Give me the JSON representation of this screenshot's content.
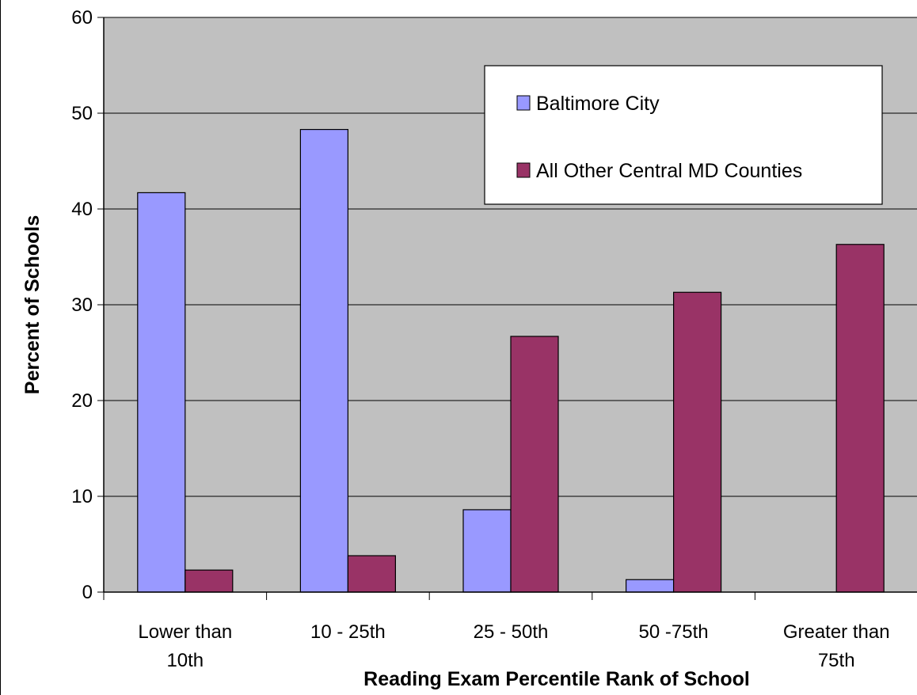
{
  "chart_data": {
    "type": "bar",
    "title": "",
    "xlabel": "Reading Exam Percentile Rank of School",
    "ylabel": "Percent of Schools",
    "ylim": [
      0,
      60
    ],
    "yticks": [
      0,
      10,
      20,
      30,
      40,
      50,
      60
    ],
    "grid": true,
    "legend_position": "top-right",
    "plot_background": "#c0c0c0",
    "categories": [
      [
        "Lower than",
        "10th"
      ],
      [
        "10 - 25th"
      ],
      [
        "25 - 50th"
      ],
      [
        "50 -75th"
      ],
      [
        "Greater than",
        "75th"
      ]
    ],
    "series": [
      {
        "name": "Baltimore City",
        "color": "#9999ff",
        "values": [
          41.7,
          48.3,
          8.6,
          1.3,
          0
        ]
      },
      {
        "name": "All Other Central MD Counties",
        "color": "#993366",
        "values": [
          2.3,
          3.8,
          26.7,
          31.3,
          36.3
        ]
      }
    ]
  }
}
